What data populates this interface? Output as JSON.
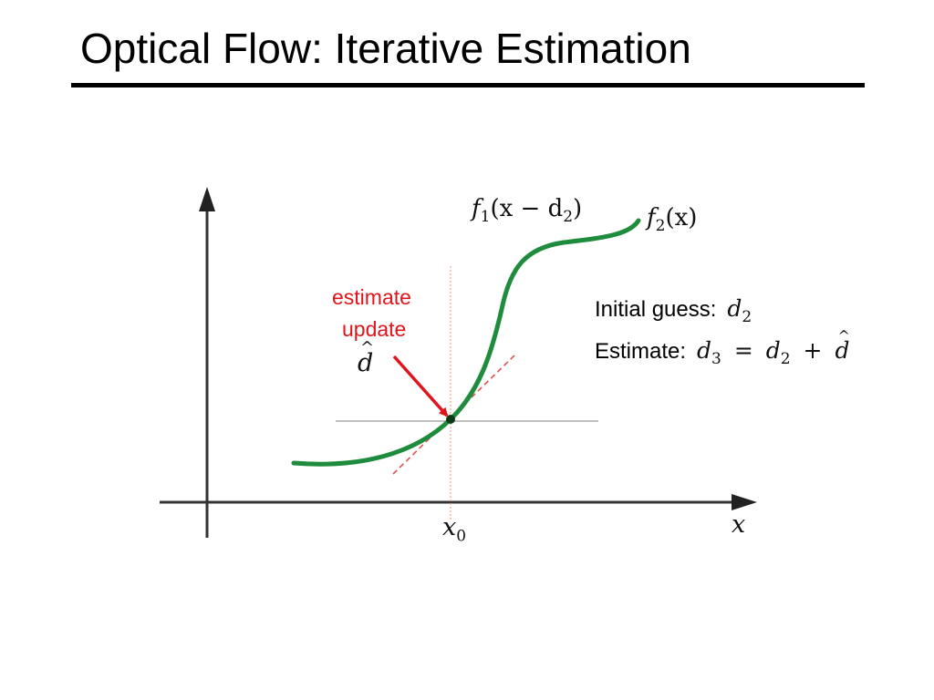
{
  "slide": {
    "title": "Optical Flow: Iterative Estimation"
  },
  "diagram": {
    "curve_label": {
      "f": "f",
      "sub": "1",
      "args": "(x − d",
      "sub2": "2",
      "close": ")"
    },
    "curve_label2": {
      "f": "f",
      "sub": "2",
      "args": "(x)"
    },
    "annotation": {
      "line1": "estimate",
      "line2": "update",
      "symbol": "d"
    },
    "axis_x_label": "x",
    "x0_label": {
      "x": "x",
      "sub": "0"
    },
    "initial_guess": {
      "text": "Initial guess:",
      "var": "d",
      "sub": "2"
    },
    "estimate": {
      "text": "Estimate:",
      "lhs_var": "d",
      "lhs_sub": "3",
      "eq": "=",
      "rhs_var": "d",
      "rhs_sub": "2",
      "plus": "+",
      "hat_var": "d"
    },
    "colors": {
      "curve": "#1e8c3c",
      "arrow": "#e0141a",
      "tangent": "#e05050",
      "guide": "#f0a880",
      "axis": "#333333"
    }
  }
}
